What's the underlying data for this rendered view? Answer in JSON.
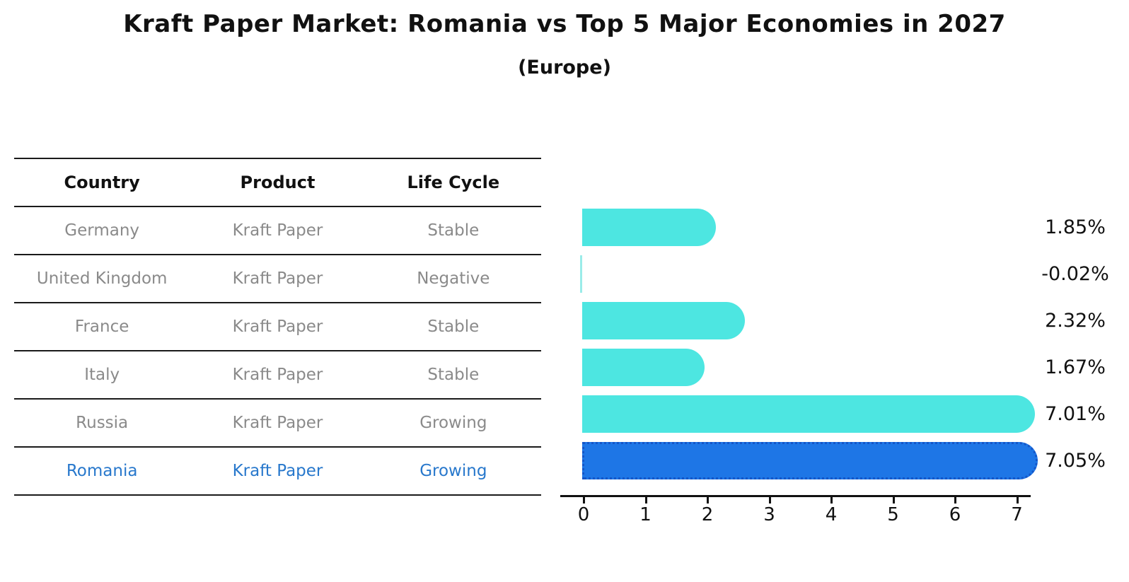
{
  "title": "Kraft Paper Market: Romania vs Top 5 Major Economies in 2027",
  "subtitle": "(Europe)",
  "table": {
    "columns": [
      "Country",
      "Product",
      "Life Cycle"
    ],
    "rows": [
      {
        "country": "Germany",
        "product": "Kraft Paper",
        "life_cycle": "Stable",
        "highlight": false
      },
      {
        "country": "United Kingdom",
        "product": "Kraft Paper",
        "life_cycle": "Negative",
        "highlight": false
      },
      {
        "country": "France",
        "product": "Kraft Paper",
        "life_cycle": "Stable",
        "highlight": false
      },
      {
        "country": "Italy",
        "product": "Kraft Paper",
        "life_cycle": "Stable",
        "highlight": false
      },
      {
        "country": "Russia",
        "product": "Kraft Paper",
        "life_cycle": "Growing",
        "highlight": false
      },
      {
        "country": "Romania",
        "product": "Kraft Paper",
        "life_cycle": "Growing",
        "highlight": true
      }
    ]
  },
  "chart_data": {
    "type": "bar",
    "orientation": "horizontal",
    "title": "Kraft Paper Market: Romania vs Top 5 Major Economies in 2027 (Europe)",
    "categories": [
      "Germany",
      "United Kingdom",
      "France",
      "Italy",
      "Russia",
      "Romania"
    ],
    "values": [
      1.85,
      -0.02,
      2.32,
      1.67,
      7.01,
      7.05
    ],
    "value_labels": [
      "1.85%",
      "-0.02%",
      "2.32%",
      "1.67%",
      "7.01%",
      "7.05%"
    ],
    "unit": "%",
    "highlight_index": 5,
    "xticks": [
      0,
      1,
      2,
      3,
      4,
      5,
      6,
      7
    ],
    "xlim": [
      0,
      7.5
    ],
    "grid": false,
    "legend": false,
    "colors": {
      "bar": "#4DE6E1",
      "negative_bar": "#9AECE9",
      "highlight_bar": "#1E76E6",
      "highlight_border": "#1456C8",
      "cell_text": "#8A8A8A",
      "highlight_text": "#2878CC",
      "header_text": "#111111",
      "axis": "#111111"
    }
  }
}
